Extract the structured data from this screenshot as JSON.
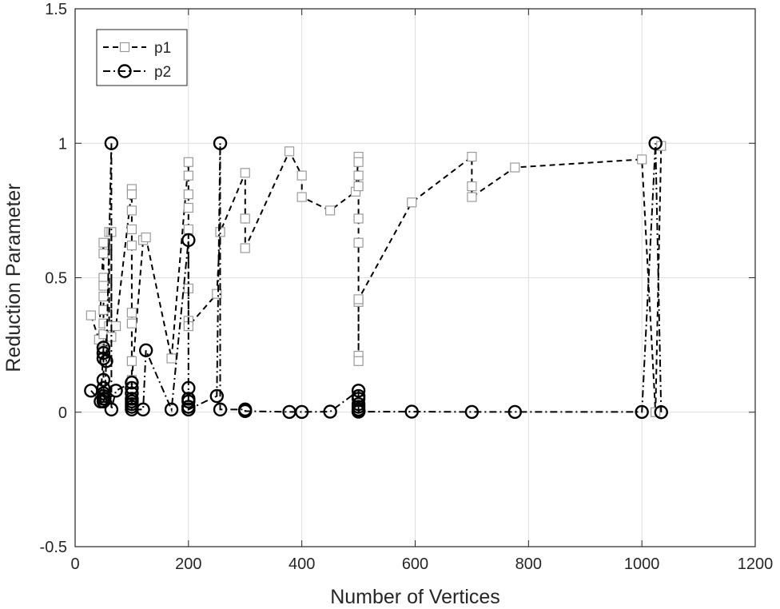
{
  "chart_data": {
    "type": "line",
    "xlabel": "Number of Vertices",
    "ylabel": "Reduction Parameter",
    "xlim": [
      0,
      1200
    ],
    "ylim": [
      -0.5,
      1.5
    ],
    "xticks": [
      0,
      200,
      400,
      600,
      800,
      1000,
      1200
    ],
    "yticks": [
      -0.5,
      0,
      0.5,
      1,
      1.5
    ],
    "xtick_labels": [
      "0",
      "200",
      "400",
      "600",
      "800",
      "1000",
      "1200"
    ],
    "ytick_labels": [
      "-0.5",
      "0",
      "0.5",
      "1",
      "1.5"
    ],
    "grid": true,
    "legend_position": "top-left",
    "series": [
      {
        "name": "p1",
        "marker": "square",
        "line_style": "dashed",
        "color": "#000000",
        "marker_color": "#9a9a9a",
        "x": [
          28,
          42,
          50,
          50,
          50,
          50,
          50,
          50,
          50,
          50,
          50,
          60,
          60,
          64,
          64,
          72,
          100,
          100,
          100,
          100,
          100,
          100,
          100,
          100,
          100,
          120,
          125,
          170,
          200,
          200,
          200,
          200,
          200,
          200,
          200,
          200,
          250,
          256,
          256,
          300,
          300,
          300,
          378,
          400,
          400,
          450,
          495,
          500,
          500,
          500,
          500,
          500,
          500,
          500,
          500,
          500,
          500,
          594,
          700,
          700,
          700,
          776,
          1000,
          1024,
          1034
        ],
        "y": [
          0.36,
          0.27,
          0.63,
          0.59,
          0.5,
          0.47,
          0.43,
          0.38,
          0.33,
          0.29,
          0.23,
          0.32,
          0.67,
          0.67,
          0.28,
          0.32,
          0.83,
          0.81,
          0.75,
          0.68,
          0.62,
          0.37,
          0.33,
          0.19,
          0.12,
          0.64,
          0.65,
          0.2,
          0.93,
          0.88,
          0.81,
          0.76,
          0.68,
          0.46,
          0.34,
          0.32,
          0.44,
          0.67,
          0.67,
          0.89,
          0.72,
          0.61,
          0.97,
          0.88,
          0.8,
          0.75,
          0.82,
          0.95,
          0.93,
          0.88,
          0.84,
          0.72,
          0.63,
          0.41,
          0.21,
          0.19,
          0.42,
          0.78,
          0.95,
          0.84,
          0.8,
          0.91,
          0.94,
          0.0,
          0.99
        ]
      },
      {
        "name": "p2",
        "marker": "circle",
        "line_style": "dash-dot",
        "color": "#000000",
        "marker_color": "#000000",
        "x": [
          28,
          45,
          50,
          50,
          50,
          50,
          50,
          50,
          50,
          50,
          50,
          52,
          55,
          64,
          64,
          72,
          100,
          100,
          100,
          100,
          100,
          100,
          100,
          100,
          120,
          125,
          170,
          200,
          200,
          200,
          200,
          200,
          200,
          200,
          200,
          250,
          256,
          256,
          300,
          300,
          378,
          400,
          450,
          500,
          500,
          500,
          500,
          500,
          500,
          500,
          500,
          500,
          594,
          700,
          776,
          1000,
          1024,
          1034
        ],
        "y": [
          0.08,
          0.04,
          0.24,
          0.22,
          0.2,
          0.12,
          0.09,
          0.07,
          0.06,
          0.05,
          0.04,
          0.05,
          0.19,
          1.0,
          0.01,
          0.08,
          0.11,
          0.09,
          0.07,
          0.05,
          0.04,
          0.03,
          0.02,
          0.01,
          0.01,
          0.23,
          0.01,
          0.64,
          0.09,
          0.05,
          0.04,
          0.02,
          0.02,
          0.01,
          0.01,
          0.06,
          1.0,
          0.01,
          0.01,
          0.004,
          0.001,
          0.001,
          0.002,
          0.08,
          0.06,
          0.05,
          0.03,
          0.02,
          0.01,
          0.005,
          0.003,
          0.002,
          0.002,
          0.001,
          0.001,
          0.001,
          1.0,
          0.0
        ]
      }
    ]
  }
}
